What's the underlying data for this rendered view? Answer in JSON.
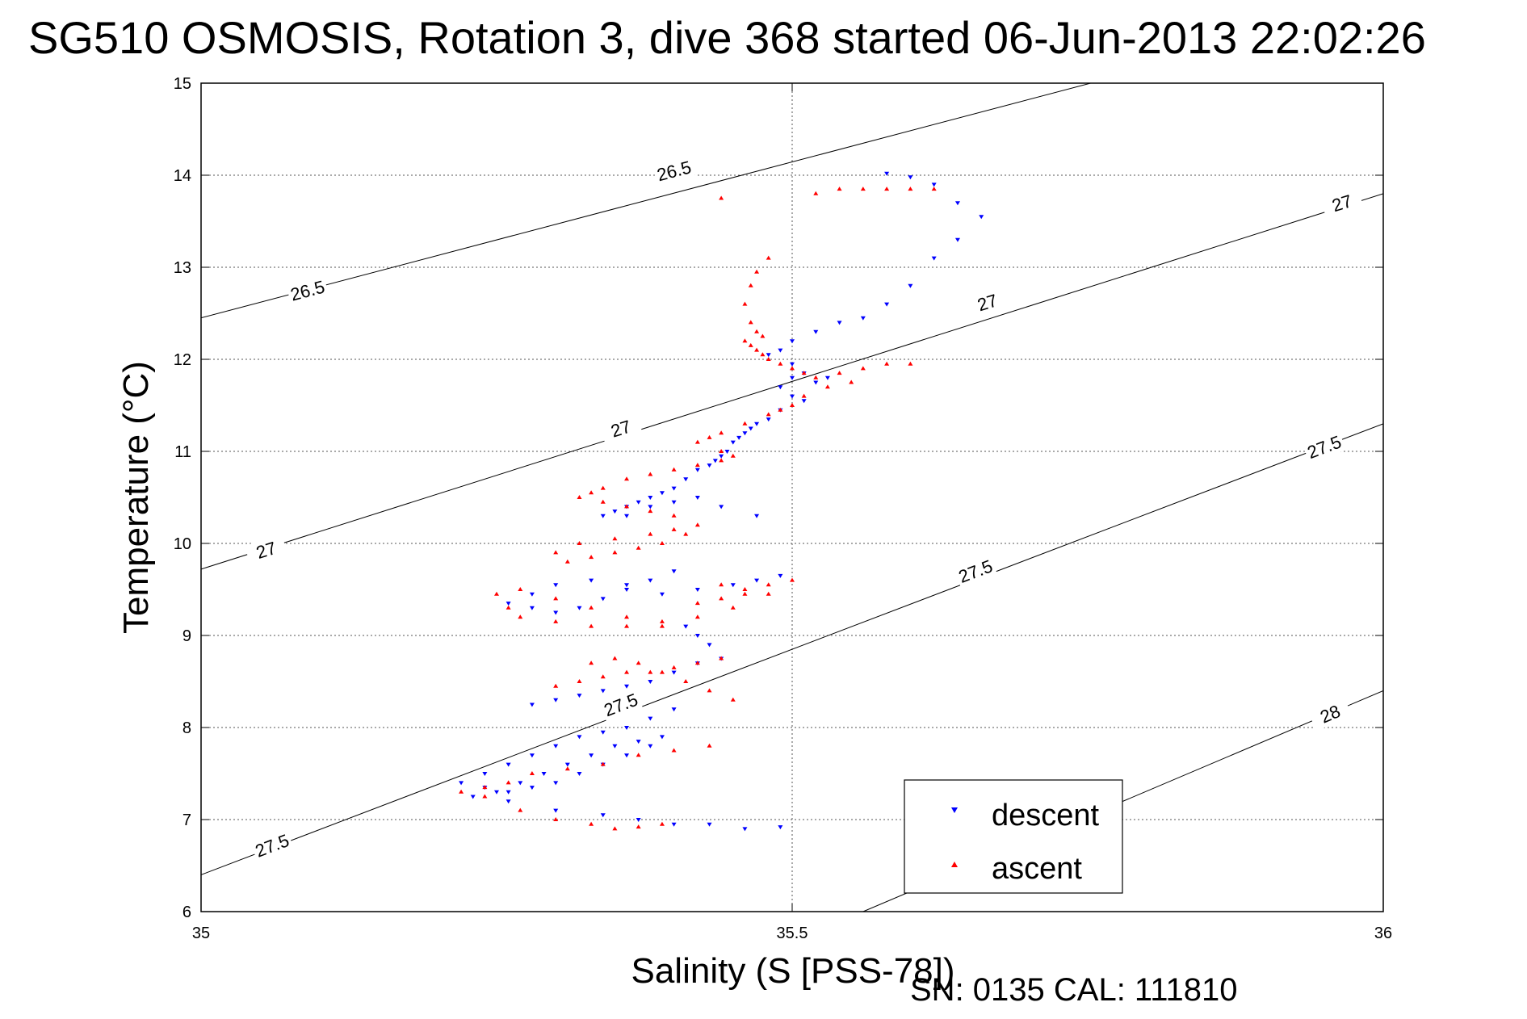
{
  "chart_data": {
    "type": "scatter",
    "title": "SG510 OSMOSIS, Rotation 3, dive 368 started 06-Jun-2013 22:02:26",
    "xlabel": "Salinity (S [PSS-78])",
    "ylabel": "Temperature (°C)",
    "xlim": [
      35,
      36
    ],
    "ylim": [
      6,
      15
    ],
    "xticks": [
      35,
      35.5,
      36
    ],
    "xtick_labels": [
      "35",
      "35.5",
      "36"
    ],
    "yticks": [
      6,
      7,
      8,
      9,
      10,
      11,
      12,
      13,
      14,
      15
    ],
    "ytick_labels": [
      "6",
      "7",
      "8",
      "9",
      "10",
      "11",
      "12",
      "13",
      "14",
      "15"
    ],
    "grid": true,
    "legend_position": "bottom-right",
    "contours": [
      {
        "label": "26.5",
        "points": [
          [
            35.0,
            12.45
          ],
          [
            35.9,
            15.5
          ]
        ],
        "label_positions": [
          [
            35.09,
            12.75
          ],
          [
            35.4,
            14.05
          ]
        ]
      },
      {
        "label": "27",
        "points": [
          [
            35.0,
            9.72
          ],
          [
            36.0,
            13.8
          ]
        ],
        "label_positions": [
          [
            35.055,
            9.93
          ],
          [
            35.355,
            11.25
          ],
          [
            35.665,
            12.62
          ],
          [
            35.965,
            13.7
          ]
        ]
      },
      {
        "label": "27.5",
        "points": [
          [
            35.0,
            6.4
          ],
          [
            36.0,
            11.3
          ]
        ],
        "label_positions": [
          [
            35.06,
            6.72
          ],
          [
            35.355,
            8.25
          ],
          [
            35.655,
            9.7
          ],
          [
            35.95,
            11.05
          ]
        ]
      },
      {
        "label": "28",
        "points": [
          [
            35.56,
            6.0
          ],
          [
            36.0,
            8.4
          ]
        ],
        "label_positions": [
          [
            35.955,
            8.15
          ]
        ]
      }
    ],
    "series": [
      {
        "name": "descent",
        "color": "#0000ff",
        "marker": "triangle-down",
        "x": [
          35.58,
          35.6,
          35.62,
          35.64,
          35.66,
          35.64,
          35.62,
          35.6,
          35.58,
          35.56,
          35.54,
          35.52,
          35.5,
          35.49,
          35.48,
          35.5,
          35.51,
          35.5,
          35.49,
          35.5,
          35.52,
          35.53,
          35.51,
          35.49,
          35.48,
          35.47,
          35.465,
          35.46,
          35.455,
          35.45,
          35.445,
          35.44,
          35.435,
          35.43,
          35.42,
          35.41,
          35.4,
          35.39,
          35.38,
          35.37,
          35.36,
          35.35,
          35.34,
          35.36,
          35.38,
          35.4,
          35.42,
          35.44,
          35.47,
          35.49,
          35.47,
          35.45,
          35.42,
          35.39,
          35.36,
          35.33,
          35.3,
          35.28,
          35.26,
          35.28,
          35.3,
          35.32,
          35.34,
          35.36,
          35.38,
          35.4,
          35.41,
          35.42,
          35.43,
          35.44,
          35.42,
          35.4,
          35.38,
          35.36,
          35.34,
          35.32,
          35.3,
          35.28,
          35.4,
          35.38,
          35.36,
          35.34,
          35.32,
          35.3,
          35.28,
          35.26,
          35.24,
          35.22,
          35.24,
          35.26,
          35.28,
          35.3,
          35.32,
          35.34,
          35.36,
          35.38,
          35.39,
          35.37,
          35.35,
          35.33,
          35.31,
          35.29,
          35.27,
          35.25,
          35.23,
          35.26,
          35.3,
          35.34,
          35.37,
          35.4,
          35.43,
          35.46,
          35.49
        ],
        "y": [
          14.02,
          13.98,
          13.9,
          13.7,
          13.55,
          13.3,
          13.1,
          12.8,
          12.6,
          12.45,
          12.4,
          12.3,
          12.2,
          12.1,
          12.05,
          11.95,
          11.85,
          11.8,
          11.7,
          11.6,
          11.75,
          11.8,
          11.55,
          11.45,
          11.35,
          11.3,
          11.25,
          11.2,
          11.15,
          11.1,
          11.0,
          10.95,
          10.9,
          10.85,
          10.8,
          10.7,
          10.6,
          10.55,
          10.5,
          10.45,
          10.4,
          10.35,
          10.3,
          10.3,
          10.4,
          10.45,
          10.5,
          10.4,
          10.3,
          9.65,
          9.6,
          9.55,
          9.5,
          9.45,
          9.5,
          9.6,
          9.55,
          9.45,
          9.35,
          9.3,
          9.25,
          9.3,
          9.4,
          9.55,
          9.6,
          9.7,
          9.1,
          9.0,
          8.9,
          8.75,
          8.7,
          8.6,
          8.5,
          8.45,
          8.4,
          8.35,
          8.3,
          8.25,
          8.2,
          8.1,
          8.0,
          7.95,
          7.9,
          7.8,
          7.7,
          7.6,
          7.5,
          7.4,
          7.35,
          7.3,
          7.35,
          7.4,
          7.5,
          7.6,
          7.7,
          7.8,
          7.9,
          7.85,
          7.8,
          7.7,
          7.6,
          7.5,
          7.4,
          7.3,
          7.25,
          7.2,
          7.1,
          7.05,
          7.0,
          6.95,
          6.95,
          6.9,
          6.92
        ]
      },
      {
        "name": "ascent",
        "color": "#ff0000",
        "marker": "triangle-up",
        "x": [
          35.44,
          35.52,
          35.54,
          35.56,
          35.58,
          35.6,
          35.62,
          35.48,
          35.47,
          35.465,
          35.46,
          35.465,
          35.47,
          35.475,
          35.46,
          35.465,
          35.47,
          35.475,
          35.48,
          35.49,
          35.5,
          35.51,
          35.52,
          35.54,
          35.56,
          35.58,
          35.6,
          35.55,
          35.53,
          35.51,
          35.5,
          35.49,
          35.48,
          35.46,
          35.44,
          35.43,
          35.42,
          35.44,
          35.45,
          35.44,
          35.42,
          35.4,
          35.38,
          35.36,
          35.34,
          35.33,
          35.32,
          35.34,
          35.36,
          35.38,
          35.4,
          35.42,
          35.4,
          35.38,
          35.35,
          35.32,
          35.3,
          35.31,
          35.33,
          35.35,
          35.37,
          35.39,
          35.41,
          35.44,
          35.46,
          35.48,
          35.5,
          35.48,
          35.45,
          35.42,
          35.39,
          35.36,
          35.33,
          35.3,
          35.27,
          35.26,
          35.25,
          35.27,
          35.3,
          35.33,
          35.36,
          35.39,
          35.42,
          35.44,
          35.46,
          35.44,
          35.42,
          35.4,
          35.38,
          35.36,
          35.34,
          35.32,
          35.3,
          35.33,
          35.35,
          35.37,
          35.39,
          35.41,
          35.43,
          35.45,
          35.43,
          35.4,
          35.37,
          35.34,
          35.31,
          35.28,
          35.26,
          35.24,
          35.22,
          35.24,
          35.27,
          35.3,
          35.33,
          35.35,
          35.37,
          35.39
        ],
        "y": [
          13.75,
          13.8,
          13.85,
          13.85,
          13.85,
          13.85,
          13.85,
          13.1,
          12.95,
          12.8,
          12.6,
          12.4,
          12.3,
          12.25,
          12.2,
          12.15,
          12.1,
          12.05,
          12.0,
          11.95,
          11.9,
          11.85,
          11.8,
          11.85,
          11.9,
          11.95,
          11.95,
          11.75,
          11.7,
          11.6,
          11.5,
          11.45,
          11.4,
          11.3,
          11.2,
          11.15,
          11.1,
          11.0,
          10.95,
          10.9,
          10.85,
          10.8,
          10.75,
          10.7,
          10.6,
          10.55,
          10.5,
          10.45,
          10.4,
          10.35,
          10.3,
          10.2,
          10.15,
          10.1,
          10.05,
          10.0,
          9.9,
          9.8,
          9.85,
          9.9,
          9.95,
          10.0,
          10.1,
          9.55,
          9.5,
          9.55,
          9.6,
          9.45,
          9.3,
          9.2,
          9.1,
          9.1,
          9.1,
          9.15,
          9.2,
          9.3,
          9.45,
          9.5,
          9.4,
          9.3,
          9.2,
          9.15,
          9.35,
          9.4,
          9.45,
          8.75,
          8.7,
          8.65,
          8.6,
          8.6,
          8.55,
          8.5,
          8.45,
          8.7,
          8.75,
          8.7,
          8.6,
          8.5,
          8.4,
          8.3,
          7.8,
          7.75,
          7.7,
          7.6,
          7.55,
          7.5,
          7.4,
          7.35,
          7.3,
          7.25,
          7.1,
          7.0,
          6.95,
          6.9,
          6.92,
          6.95
        ]
      }
    ]
  },
  "legend": {
    "descent_label": "descent",
    "ascent_label": "ascent"
  },
  "footer": {
    "serial": "SN: 0135  CAL: 111810"
  }
}
